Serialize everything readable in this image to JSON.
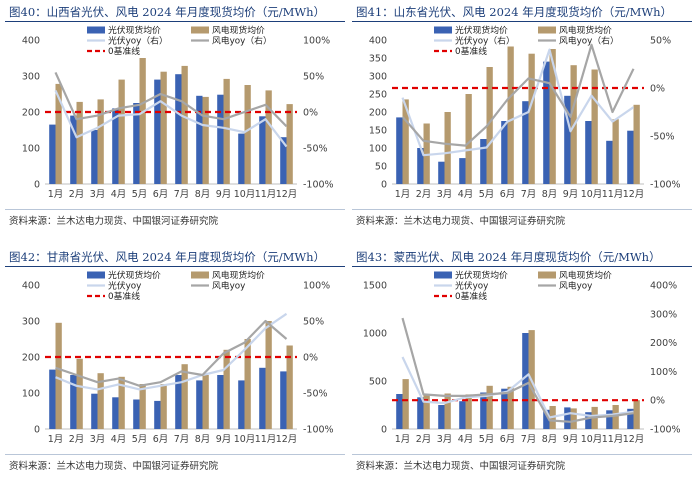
{
  "figures": [
    {
      "title": "图40：山西省光伏、风电 2024 年月度现货均价（元/MWh）",
      "source": "资料来源：兰木达电力现货、中国银河证券研究院"
    },
    {
      "title": "图41：山东省光伏、风电 2024 年月度现货均价（元/MWh）",
      "source": "资料来源：兰木达电力现货、中国银河证券研究院"
    },
    {
      "title": "图42：甘肃省光伏、风电 2024 年月度现货均价（元/MWh）",
      "source": "资料来源：兰木达电力现货、中国银河证券研究院"
    },
    {
      "title": "图43：蒙西光伏、风电 2024 年月度现货均价（元/MWh）",
      "source": "资料来源：兰木达电力现货、中国银河证券研究院"
    }
  ],
  "colors": {
    "solar_bar": "#3a62b3",
    "wind_bar": "#b59a6e",
    "solar_yoy": "#c9d6ec",
    "wind_yoy": "#a6a6a6",
    "zero_line": "#e00000",
    "axis_text": "#404040"
  },
  "chart_data": [
    {
      "type": "bar+line",
      "categories": [
        "1月",
        "2月",
        "3月",
        "4月",
        "5月",
        "6月",
        "7月",
        "8月",
        "9月",
        "10月",
        "11月",
        "12月"
      ],
      "ylim": [
        0,
        400
      ],
      "yticks": [
        0,
        100,
        200,
        300,
        400
      ],
      "y2lim": [
        -100,
        100
      ],
      "y2ticks": [
        -100,
        -50,
        0,
        50,
        100
      ],
      "y2suffix": "%",
      "legend": [
        "光伏现货均价",
        "风电现货均价",
        "光伏yoy（右）",
        "风电yoy（右）",
        "0基准线"
      ],
      "series": [
        {
          "name": "光伏现货均价",
          "kind": "bar",
          "axis": "left",
          "values": [
            165,
            190,
            150,
            210,
            225,
            290,
            305,
            245,
            248,
            140,
            188,
            130
          ]
        },
        {
          "name": "风电现货均价",
          "kind": "bar",
          "axis": "left",
          "values": [
            278,
            228,
            235,
            290,
            350,
            312,
            328,
            242,
            292,
            275,
            260,
            222
          ]
        },
        {
          "name": "光伏yoy（右）",
          "kind": "line",
          "axis": "right",
          "values": [
            30,
            -35,
            -22,
            -5,
            -3,
            15,
            -5,
            -18,
            -22,
            -28,
            -10,
            -48
          ]
        },
        {
          "name": "风电yoy（右）",
          "kind": "line",
          "axis": "right",
          "values": [
            55,
            -10,
            -5,
            5,
            10,
            25,
            15,
            -5,
            -10,
            0,
            10,
            -20
          ]
        }
      ],
      "zero_label": "0基准线"
    },
    {
      "type": "bar+line",
      "categories": [
        "1月",
        "2月",
        "3月",
        "4月",
        "5月",
        "6月",
        "7月",
        "8月",
        "9月",
        "10月",
        "11月",
        "12月"
      ],
      "ylim": [
        0,
        400
      ],
      "yticks": [
        0,
        50,
        100,
        150,
        200,
        250,
        300,
        350,
        400
      ],
      "y2lim": [
        -100,
        50
      ],
      "y2ticks": [
        -100,
        -50,
        0,
        50
      ],
      "y2suffix": "%",
      "legend": [
        "光伏现货均价",
        "风电现货均价",
        "光伏yoy（右）",
        "风电yoy（右）",
        "0基准线"
      ],
      "series": [
        {
          "name": "光伏现货均价",
          "kind": "bar",
          "axis": "left",
          "values": [
            185,
            100,
            62,
            72,
            125,
            175,
            230,
            340,
            245,
            175,
            120,
            148
          ]
        },
        {
          "name": "风电现货均价",
          "kind": "bar",
          "axis": "left",
          "values": [
            235,
            168,
            200,
            250,
            325,
            382,
            362,
            375,
            330,
            318,
            180,
            220
          ]
        },
        {
          "name": "光伏yoy（右）",
          "kind": "line",
          "axis": "right",
          "values": [
            -10,
            -70,
            -68,
            -65,
            -62,
            -35,
            -25,
            40,
            -45,
            -8,
            -35,
            -20
          ]
        },
        {
          "name": "风电yoy（右）",
          "kind": "line",
          "axis": "right",
          "values": [
            -30,
            -55,
            -58,
            -60,
            -40,
            -12,
            10,
            5,
            -30,
            45,
            -25,
            20
          ]
        }
      ],
      "zero_label": "0基准线"
    },
    {
      "type": "bar+line",
      "categories": [
        "1月",
        "2月",
        "3月",
        "4月",
        "5月",
        "6月",
        "7月",
        "8月",
        "9月",
        "10月",
        "11月",
        "12月"
      ],
      "ylim": [
        0,
        400
      ],
      "yticks": [
        0,
        100,
        200,
        300,
        400
      ],
      "y2lim": [
        -100,
        100
      ],
      "y2ticks": [
        -100,
        -50,
        0,
        50,
        100
      ],
      "y2suffix": "%",
      "legend": [
        "光伏现货均价",
        "风电现货均价",
        "光伏yoy",
        "风电yoy",
        "0基准线"
      ],
      "series": [
        {
          "name": "光伏现货均价",
          "kind": "bar",
          "axis": "left",
          "values": [
            165,
            150,
            98,
            88,
            82,
            78,
            150,
            135,
            150,
            135,
            170,
            160
          ]
        },
        {
          "name": "风电现货均价",
          "kind": "bar",
          "axis": "left",
          "values": [
            295,
            195,
            155,
            145,
            125,
            125,
            180,
            150,
            220,
            250,
            300,
            232
          ]
        },
        {
          "name": "光伏yoy",
          "kind": "line",
          "axis": "right",
          "values": [
            -28,
            -40,
            -45,
            -38,
            -45,
            -40,
            -35,
            -25,
            -18,
            10,
            40,
            60
          ]
        },
        {
          "name": "风电yoy",
          "kind": "line",
          "axis": "right",
          "values": [
            -15,
            -25,
            -35,
            -30,
            -40,
            -35,
            -20,
            -25,
            5,
            20,
            50,
            25
          ]
        }
      ],
      "zero_label": "0基准线"
    },
    {
      "type": "bar+line",
      "categories": [
        "1月",
        "2月",
        "3月",
        "4月",
        "5月",
        "6月",
        "7月",
        "8月",
        "9月",
        "10月",
        "11月",
        "12月"
      ],
      "ylim": [
        0,
        1500
      ],
      "yticks": [
        0,
        500,
        1000,
        1500
      ],
      "y2lim": [
        -100,
        400
      ],
      "y2ticks": [
        -100,
        0,
        100,
        200,
        300,
        400
      ],
      "y2suffix": "%",
      "legend": [
        "光伏现货均价",
        "风电现货均价",
        "光伏yoy",
        "风电yoy",
        "0基准线"
      ],
      "series": [
        {
          "name": "光伏现货均价",
          "kind": "bar",
          "axis": "left",
          "values": [
            365,
            330,
            250,
            290,
            380,
            420,
            1000,
            200,
            225,
            175,
            195,
            210
          ]
        },
        {
          "name": "风电现货均价",
          "kind": "bar",
          "axis": "left",
          "values": [
            520,
            355,
            370,
            360,
            450,
            440,
            1030,
            240,
            215,
            230,
            250,
            300
          ]
        },
        {
          "name": "光伏yoy",
          "kind": "line",
          "axis": "right",
          "values": [
            150,
            -5,
            -10,
            10,
            15,
            30,
            90,
            -60,
            -45,
            -55,
            -50,
            -40
          ]
        },
        {
          "name": "风电yoy",
          "kind": "line",
          "axis": "right",
          "values": [
            285,
            20,
            15,
            15,
            20,
            25,
            60,
            -70,
            -75,
            -60,
            -55,
            -45
          ]
        }
      ],
      "zero_label": "0基准线"
    }
  ]
}
